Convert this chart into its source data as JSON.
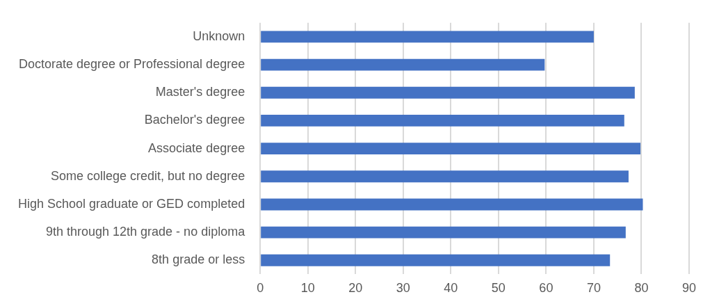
{
  "chart_data": {
    "type": "bar",
    "orientation": "horizontal",
    "categories": [
      "Unknown",
      "Doctorate degree or Professional degree",
      "Master's degree",
      "Bachelor's degree",
      "Associate degree",
      "Some college credit, but no degree",
      "High School graduate or GED completed",
      "9th through 12th grade - no diploma",
      "8th grade or less"
    ],
    "values": [
      70.0,
      59.7,
      78.6,
      76.4,
      79.8,
      77.3,
      80.3,
      76.7,
      73.4
    ],
    "color": "#4472c4",
    "xlim": [
      0,
      90
    ],
    "xticks": [
      0,
      10,
      20,
      30,
      40,
      50,
      60,
      70,
      80,
      90
    ],
    "grid": "x",
    "legend": false
  }
}
